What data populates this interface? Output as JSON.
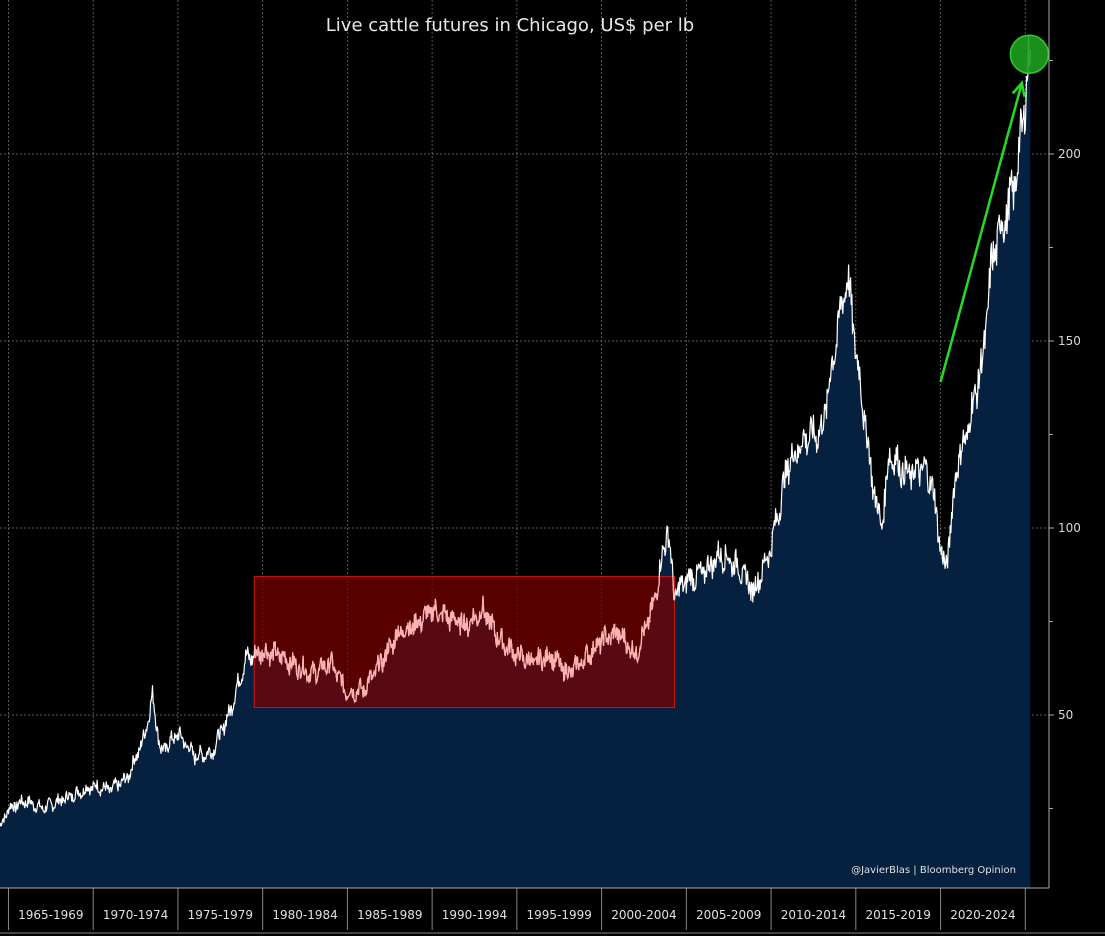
{
  "chart_data": {
    "type": "area",
    "title": "Live cattle futures in Chicago, US$ per lb",
    "credit": "@JavierBlas | Bloomberg Opinion",
    "xlabel": "",
    "ylabel": "",
    "ylim": [
      0,
      237
    ],
    "yticks": [
      50,
      100,
      150,
      200
    ],
    "categories": [
      "1965-1969",
      "1970-1974",
      "1975-1979",
      "1980-1984",
      "1985-1989",
      "1990-1994",
      "1995-1999",
      "2000-2004",
      "2005-2009",
      "2010-2014",
      "2015-2019",
      "2020-2024"
    ],
    "grid": true,
    "colors": {
      "area": "#06203f",
      "line": "#ffffff",
      "highlight_box": "#7a0000",
      "highlight_line": "#ffb0b0",
      "arrow": "#22dd22",
      "marker": "#1e9e1e"
    },
    "series": [
      {
        "points": [
          [
            1964.5,
            20
          ],
          [
            1965,
            25
          ],
          [
            1966,
            27
          ],
          [
            1967,
            25
          ],
          [
            1968,
            27
          ],
          [
            1969,
            29
          ],
          [
            1970,
            31
          ],
          [
            1971,
            30
          ],
          [
            1972,
            33
          ],
          [
            1973,
            44
          ],
          [
            1973.5,
            55
          ],
          [
            1974,
            40
          ],
          [
            1975,
            45
          ],
          [
            1976,
            39
          ],
          [
            1977,
            40
          ],
          [
            1978,
            50
          ],
          [
            1979,
            65
          ],
          [
            1980,
            67
          ],
          [
            1981,
            66
          ],
          [
            1982,
            63
          ],
          [
            1983,
            61
          ],
          [
            1984,
            64
          ],
          [
            1985,
            56
          ],
          [
            1986,
            57
          ],
          [
            1987,
            64
          ],
          [
            1988,
            72
          ],
          [
            1989,
            74
          ],
          [
            1990,
            78
          ],
          [
            1991,
            76
          ],
          [
            1992,
            74
          ],
          [
            1993,
            78
          ],
          [
            1994,
            70
          ],
          [
            1995,
            66
          ],
          [
            1996,
            64
          ],
          [
            1997,
            66
          ],
          [
            1998,
            61
          ],
          [
            1999,
            65
          ],
          [
            2000,
            70
          ],
          [
            2001,
            72
          ],
          [
            2002,
            66
          ],
          [
            2003,
            78
          ],
          [
            2003.9,
            100
          ],
          [
            2004.3,
            82
          ],
          [
            2005,
            86
          ],
          [
            2006,
            88
          ],
          [
            2007,
            93
          ],
          [
            2008,
            90
          ],
          [
            2009,
            83
          ],
          [
            2010,
            95
          ],
          [
            2011,
            117
          ],
          [
            2012,
            124
          ],
          [
            2013,
            126
          ],
          [
            2014,
            155
          ],
          [
            2014.5,
            168
          ],
          [
            2015,
            148
          ],
          [
            2016,
            112
          ],
          [
            2016.5,
            100
          ],
          [
            2017,
            120
          ],
          [
            2018,
            114
          ],
          [
            2019,
            116
          ],
          [
            2019.5,
            112
          ],
          [
            2020,
            95
          ],
          [
            2020.3,
            88
          ],
          [
            2021,
            118
          ],
          [
            2021.5,
            124
          ],
          [
            2022,
            135
          ],
          [
            2022.5,
            145
          ],
          [
            2023,
            170
          ],
          [
            2023.5,
            180
          ],
          [
            2024,
            185
          ],
          [
            2024.5,
            195
          ],
          [
            2025,
            215
          ],
          [
            2025.3,
            228
          ]
        ]
      }
    ],
    "highlight_range": {
      "x": [
        1979.5,
        2004.3
      ],
      "y": [
        52,
        87
      ]
    },
    "arrow": {
      "from": [
        2020.0,
        139
      ],
      "to": [
        2024.8,
        219
      ]
    },
    "peak_marker": [
      2025.3,
      228
    ]
  }
}
